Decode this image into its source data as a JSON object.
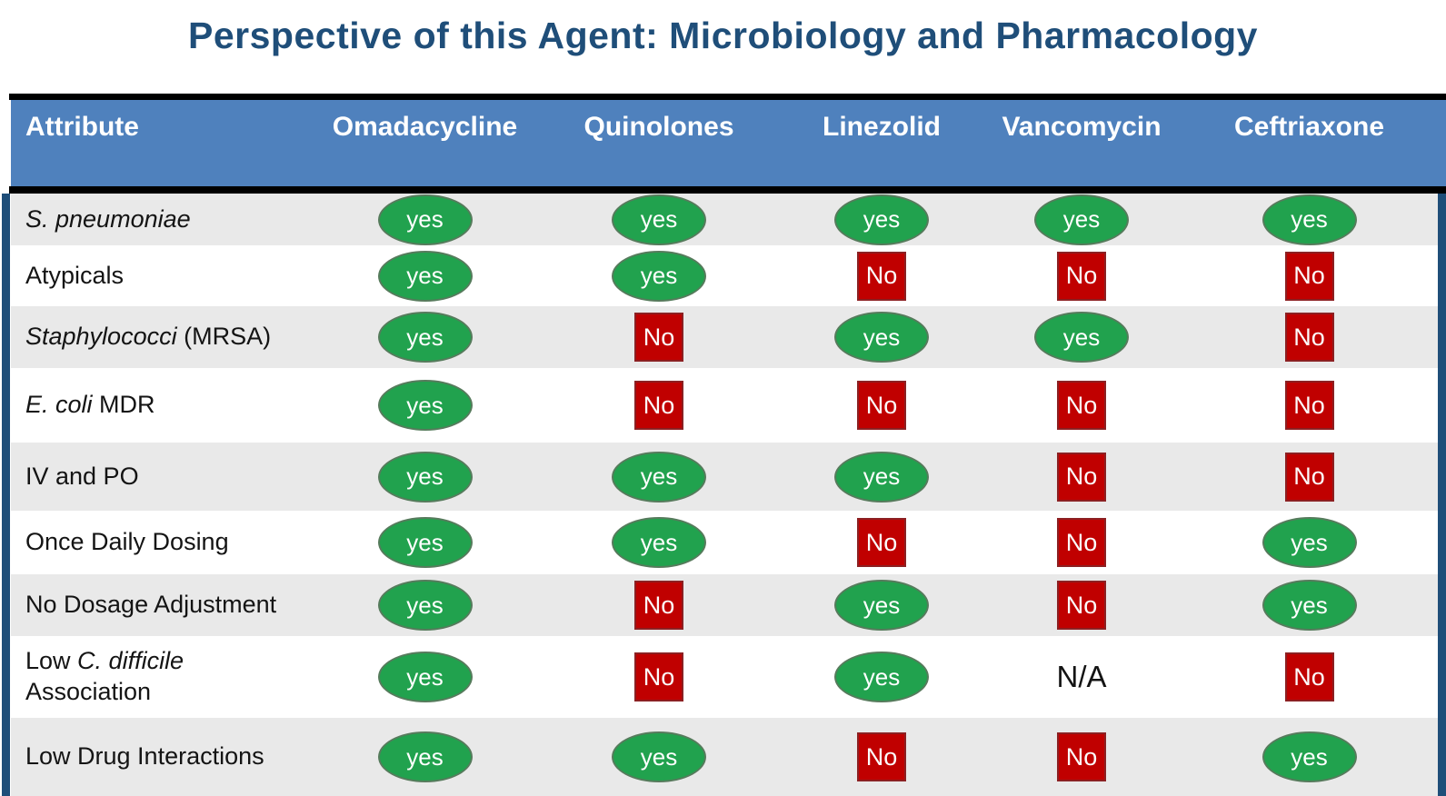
{
  "title": "Perspective of this Agent: Microbiology and Pharmacology",
  "colors": {
    "title_blue": "#1F4E79",
    "header_blue": "#4F81BD",
    "accent_navy": "#1F4E79",
    "row_alt_gray": "#E9E9E9",
    "yes_green": "#21A24E",
    "no_red": "#C00000"
  },
  "table": {
    "columns": [
      "Attribute",
      "Omadacycline",
      "Quinolones",
      "Linezolid",
      "Vancomycin",
      "Ceftriaxone"
    ],
    "marker_legend": {
      "yes": "green ellipse",
      "No": "red square",
      "N/A": "plain text"
    },
    "rows": [
      {
        "label": [
          {
            "text": "S. pneumoniae",
            "italic": true
          }
        ],
        "values": [
          "yes",
          "yes",
          "yes",
          "yes",
          "yes"
        ]
      },
      {
        "label": [
          {
            "text": "Atypicals",
            "italic": false
          }
        ],
        "values": [
          "yes",
          "yes",
          "No",
          "No",
          "No"
        ]
      },
      {
        "label": [
          {
            "text": "Staphylococci",
            "italic": true
          },
          {
            "text": " (MRSA)",
            "italic": false
          }
        ],
        "values": [
          "yes",
          "No",
          "yes",
          "yes",
          "No"
        ]
      },
      {
        "label": [
          {
            "text": "E. coli",
            "italic": true
          },
          {
            "text": " MDR",
            "italic": false
          }
        ],
        "values": [
          "yes",
          "No",
          "No",
          "No",
          "No"
        ]
      },
      {
        "label": [
          {
            "text": "IV and PO",
            "italic": false
          }
        ],
        "values": [
          "yes",
          "yes",
          "yes",
          "No",
          "No"
        ]
      },
      {
        "label": [
          {
            "text": "Once Daily Dosing",
            "italic": false
          }
        ],
        "values": [
          "yes",
          "yes",
          "No",
          "No",
          "yes"
        ]
      },
      {
        "label": [
          {
            "text": "No Dosage Adjustment",
            "italic": false
          }
        ],
        "values": [
          "yes",
          "No",
          "yes",
          "No",
          "yes"
        ]
      },
      {
        "label": [
          {
            "text": "Low ",
            "italic": false
          },
          {
            "text": "C. difficile",
            "italic": true
          },
          {
            "text": " Association",
            "italic": false
          }
        ],
        "values": [
          "yes",
          "No",
          "yes",
          "N/A",
          "No"
        ]
      },
      {
        "label": [
          {
            "text": "Low Drug Interactions",
            "italic": false
          }
        ],
        "values": [
          "yes",
          "yes",
          "No",
          "No",
          "yes"
        ]
      }
    ]
  }
}
